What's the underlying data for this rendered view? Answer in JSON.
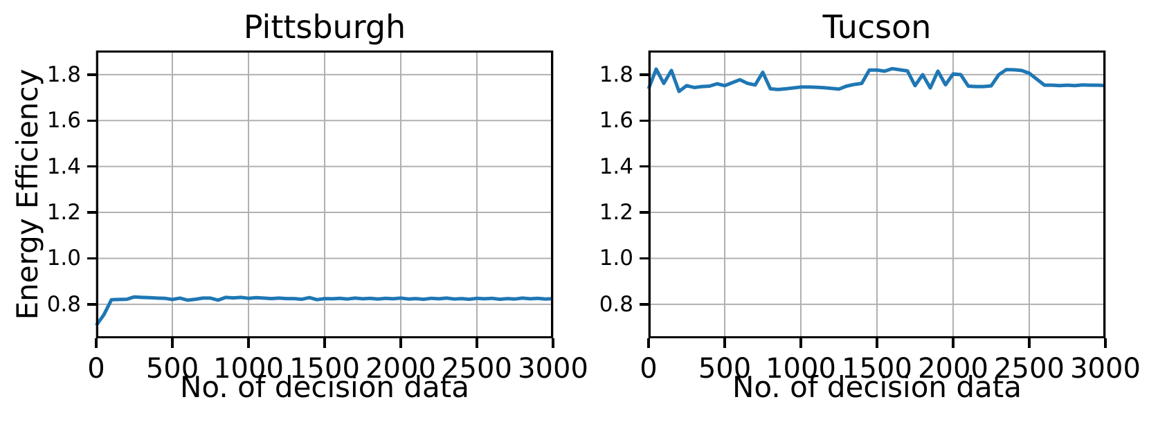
{
  "figure": {
    "background": "#ffffff",
    "line_color": "#1f77b4",
    "grid_color": "#b0b0b0",
    "spine_color": "#000000",
    "text_color": "#000000"
  },
  "chart_data": [
    {
      "type": "line",
      "title": "Pittsburgh",
      "xlabel": "No. of decision data",
      "ylabel": "Energy Efficiency",
      "xlim": [
        0,
        3000
      ],
      "ylim": [
        0.652,
        1.905
      ],
      "xticks": [
        0,
        500,
        1000,
        1500,
        2000,
        2500,
        3000
      ],
      "yticks": [
        0.8,
        1.0,
        1.2,
        1.4,
        1.6,
        1.8
      ],
      "grid": true,
      "legend_position": "none",
      "series": [
        {
          "name": "energy-efficiency",
          "x": [
            0,
            50,
            100,
            150,
            200,
            250,
            300,
            350,
            400,
            450,
            500,
            550,
            600,
            650,
            700,
            750,
            800,
            850,
            900,
            950,
            1000,
            1050,
            1100,
            1150,
            1200,
            1250,
            1300,
            1350,
            1400,
            1450,
            1500,
            1550,
            1600,
            1650,
            1700,
            1750,
            1800,
            1850,
            1900,
            1950,
            2000,
            2050,
            2100,
            2150,
            2200,
            2250,
            2300,
            2350,
            2400,
            2450,
            2500,
            2550,
            2600,
            2650,
            2700,
            2750,
            2800,
            2850,
            2900,
            2950,
            3000
          ],
          "y": [
            0.708,
            0.754,
            0.82,
            0.821,
            0.822,
            0.832,
            0.83,
            0.829,
            0.827,
            0.826,
            0.821,
            0.827,
            0.818,
            0.822,
            0.827,
            0.827,
            0.818,
            0.83,
            0.828,
            0.83,
            0.826,
            0.829,
            0.827,
            0.825,
            0.827,
            0.825,
            0.825,
            0.822,
            0.829,
            0.82,
            0.825,
            0.824,
            0.826,
            0.823,
            0.827,
            0.824,
            0.826,
            0.823,
            0.826,
            0.824,
            0.827,
            0.823,
            0.825,
            0.822,
            0.826,
            0.824,
            0.827,
            0.823,
            0.825,
            0.822,
            0.826,
            0.824,
            0.826,
            0.822,
            0.825,
            0.823,
            0.827,
            0.824,
            0.826,
            0.823,
            0.825
          ]
        }
      ]
    },
    {
      "type": "line",
      "title": "Tucson",
      "xlabel": "No. of decision data",
      "ylabel": "",
      "xlim": [
        0,
        3000
      ],
      "ylim": [
        0.652,
        1.905
      ],
      "xticks": [
        0,
        500,
        1000,
        1500,
        2000,
        2500,
        3000
      ],
      "yticks": [
        0.8,
        1.0,
        1.2,
        1.4,
        1.6,
        1.8
      ],
      "grid": true,
      "legend_position": "none",
      "series": [
        {
          "name": "energy-efficiency",
          "x": [
            0,
            50,
            100,
            150,
            200,
            250,
            300,
            350,
            400,
            450,
            500,
            550,
            600,
            650,
            700,
            750,
            800,
            850,
            900,
            950,
            1000,
            1050,
            1100,
            1150,
            1200,
            1250,
            1300,
            1350,
            1400,
            1450,
            1500,
            1550,
            1600,
            1650,
            1700,
            1750,
            1800,
            1850,
            1900,
            1950,
            2000,
            2050,
            2100,
            2150,
            2200,
            2250,
            2300,
            2350,
            2400,
            2450,
            2500,
            2550,
            2600,
            2650,
            2700,
            2750,
            2800,
            2850,
            2900,
            2950,
            3000
          ],
          "y": [
            1.738,
            1.824,
            1.762,
            1.818,
            1.727,
            1.752,
            1.744,
            1.748,
            1.75,
            1.76,
            1.752,
            1.765,
            1.778,
            1.762,
            1.755,
            1.81,
            1.738,
            1.735,
            1.738,
            1.742,
            1.746,
            1.746,
            1.745,
            1.743,
            1.74,
            1.737,
            1.75,
            1.757,
            1.762,
            1.82,
            1.82,
            1.815,
            1.826,
            1.821,
            1.816,
            1.752,
            1.8,
            1.742,
            1.815,
            1.756,
            1.803,
            1.8,
            1.75,
            1.748,
            1.748,
            1.751,
            1.8,
            1.822,
            1.821,
            1.818,
            1.806,
            1.78,
            1.754,
            1.754,
            1.752,
            1.754,
            1.752,
            1.755,
            1.754,
            1.754,
            1.752
          ]
        }
      ]
    }
  ]
}
